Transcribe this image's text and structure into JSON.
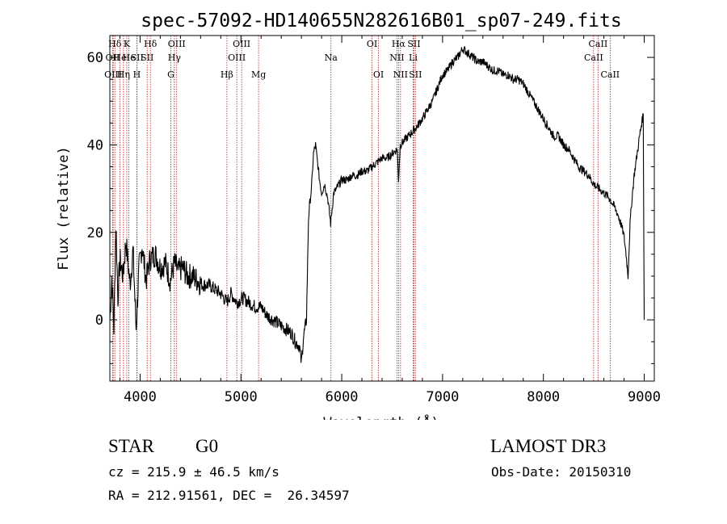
{
  "chart_data": {
    "type": "line",
    "title": "spec-57092-HD140655N282616B01_sp07-249.fits",
    "xlabel": "Wavelength (Å)",
    "ylabel": "Flux (relative)",
    "xlim": [
      3700,
      9100
    ],
    "ylim": [
      -14,
      65
    ],
    "xticks": [
      4000,
      5000,
      6000,
      7000,
      8000,
      9000
    ],
    "yticks": [
      0,
      20,
      40,
      60
    ],
    "grid": false,
    "line_color": "#000000",
    "marker_line_color": "#b22222",
    "spectrum": {
      "x": [
        3700,
        3720,
        3740,
        3760,
        3780,
        3800,
        3830,
        3860,
        3900,
        3930,
        3960,
        3990,
        4020,
        4060,
        4100,
        4150,
        4200,
        4250,
        4300,
        4340,
        4380,
        4420,
        4470,
        4520,
        4570,
        4620,
        4680,
        4740,
        4800,
        4861,
        4900,
        4960,
        5020,
        5080,
        5140,
        5200,
        5260,
        5320,
        5380,
        5440,
        5500,
        5540,
        5580,
        5600,
        5620,
        5650,
        5670,
        5680,
        5700,
        5720,
        5740,
        5760,
        5780,
        5800,
        5830,
        5860,
        5890,
        5920,
        5950,
        6000,
        6050,
        6100,
        6150,
        6200,
        6250,
        6300,
        6350,
        6400,
        6450,
        6500,
        6550,
        6563,
        6580,
        6620,
        6660,
        6700,
        6740,
        6800,
        6850,
        6900,
        6950,
        7000,
        7050,
        7100,
        7150,
        7200,
        7250,
        7300,
        7350,
        7400,
        7450,
        7500,
        7550,
        7600,
        7650,
        7700,
        7750,
        7800,
        7850,
        7900,
        7950,
        8000,
        8050,
        8100,
        8150,
        8200,
        8250,
        8300,
        8350,
        8400,
        8450,
        8500,
        8550,
        8600,
        8650,
        8700,
        8740,
        8780,
        8800,
        8820,
        8840,
        8860,
        8880,
        8900,
        8930,
        8960,
        8990,
        9000
      ],
      "y": [
        0,
        10,
        -2,
        22,
        5,
        14,
        10,
        18,
        8,
        16,
        -2,
        12,
        17,
        9,
        14,
        15,
        12,
        13,
        9,
        13,
        11,
        12,
        10,
        10,
        9,
        8,
        8,
        7,
        6,
        4,
        6,
        4,
        5,
        4,
        3,
        3,
        1,
        0,
        -1,
        -2,
        -3,
        -5,
        -6,
        -10,
        -4,
        0,
        23,
        26,
        30,
        38,
        40,
        36,
        32,
        29,
        31,
        28,
        22,
        29,
        30,
        32,
        32,
        33,
        33,
        34,
        34,
        35,
        36,
        37,
        37,
        38,
        39,
        32,
        40,
        41,
        42,
        43,
        44,
        46,
        48,
        50,
        53,
        56,
        57,
        59,
        60,
        62,
        61,
        60,
        59,
        59,
        58,
        57,
        57,
        56,
        56,
        55,
        55,
        54,
        52,
        50,
        48,
        46,
        44,
        42,
        42,
        40,
        39,
        37,
        35,
        34,
        33,
        31,
        30,
        29,
        28,
        26,
        24,
        21,
        19,
        15,
        10,
        22,
        28,
        33,
        38,
        43,
        47,
        0
      ]
    },
    "line_markers": [
      {
        "label": "Hδ",
        "x": 3750,
        "row": 1
      },
      {
        "label": "OII",
        "x": 3727,
        "row": 2
      },
      {
        "label": "OIII",
        "x": 3733,
        "row": 3
      },
      {
        "label": "He",
        "x": 3800,
        "row": 2
      },
      {
        "label": "Hη",
        "x": 3835,
        "row": 3
      },
      {
        "label": "K",
        "x": 3868,
        "row": 1
      },
      {
        "label": "He",
        "x": 3889,
        "row": 2
      },
      {
        "label": "H",
        "x": 3968,
        "row": 3
      },
      {
        "label": "SII",
        "x": 3970,
        "row": 2
      },
      {
        "label": "Hδ",
        "x": 4102,
        "row": 1
      },
      {
        "label": "SII",
        "x": 4070,
        "row": 2
      },
      {
        "label": "OIII",
        "x": 4363,
        "row": 1
      },
      {
        "label": "Hγ",
        "x": 4340,
        "row": 2
      },
      {
        "label": "G",
        "x": 4305,
        "row": 3
      },
      {
        "label": "Hβ",
        "x": 4861,
        "row": 3
      },
      {
        "label": "OIII",
        "x": 5007,
        "row": 1
      },
      {
        "label": "OIII",
        "x": 4959,
        "row": 2
      },
      {
        "label": "Mg",
        "x": 5175,
        "row": 3
      },
      {
        "label": "Na",
        "x": 5893,
        "row": 2
      },
      {
        "label": "OI",
        "x": 6300,
        "row": 1
      },
      {
        "label": "OI",
        "x": 6364,
        "row": 3
      },
      {
        "label": "Hα",
        "x": 6563,
        "row": 1
      },
      {
        "label": "SII",
        "x": 6716,
        "row": 1
      },
      {
        "label": "NII",
        "x": 6548,
        "row": 2
      },
      {
        "label": "Li",
        "x": 6708,
        "row": 2
      },
      {
        "label": "NII",
        "x": 6583,
        "row": 3
      },
      {
        "label": "SII",
        "x": 6731,
        "row": 3
      },
      {
        "label": "CaII",
        "x": 8542,
        "row": 1
      },
      {
        "label": "CaII",
        "x": 8498,
        "row": 2
      },
      {
        "label": "CaII",
        "x": 8662,
        "row": 3
      }
    ]
  },
  "info": {
    "class_label": "STAR",
    "subclass_label": "G0",
    "survey": "LAMOST DR3",
    "redshift": "cz = 215.9 ± 46.5 km/s",
    "obs_date": "Obs-Date: 20150310",
    "coords": "RA = 212.91561, DEC =  26.34597"
  }
}
